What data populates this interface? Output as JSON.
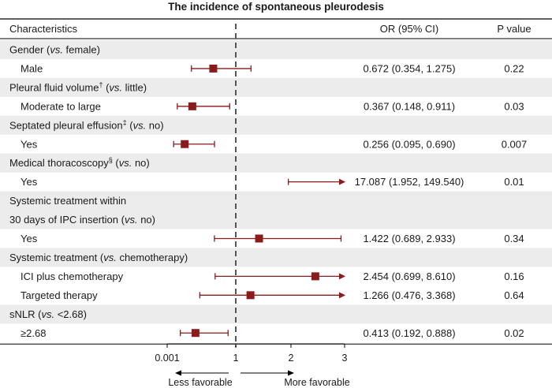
{
  "colors": {
    "marker": "#8b1a1a",
    "shade": "#ececec",
    "rule": "#000000",
    "refline": "#555555"
  },
  "chart_data": {
    "type": "forest",
    "title": "The incidence of spontaneous pleurodesis",
    "columns": {
      "characteristics": "Characteristics",
      "or": "OR (95% CI)",
      "p": "P value"
    },
    "x_axis": {
      "ticks": [
        {
          "value": 0.001,
          "label": "0.001"
        },
        {
          "value": 1,
          "label": "1"
        },
        {
          "value": 2,
          "label": "2"
        },
        {
          "value": 3,
          "label": "3"
        }
      ],
      "range": [
        0.001,
        3
      ],
      "reference": 1,
      "left_label": "Less favorable",
      "right_label": "More favorable"
    },
    "rows": [
      {
        "kind": "header",
        "parts": [
          {
            "t": "Gender ("
          },
          {
            "t": "vs.",
            "i": true
          },
          {
            "t": " female)"
          }
        ]
      },
      {
        "kind": "item",
        "label": "Male",
        "or": 0.672,
        "lo": 0.354,
        "hi": 1.275,
        "or_text": "0.672 (0.354, 1.275)",
        "p": "0.22"
      },
      {
        "kind": "header",
        "parts": [
          {
            "t": "Pleural fluid volume"
          },
          {
            "t": "†",
            "sup": true
          },
          {
            "t": " ("
          },
          {
            "t": "vs.",
            "i": true
          },
          {
            "t": " little)"
          }
        ]
      },
      {
        "kind": "item",
        "label": "Moderate to large",
        "or": 0.367,
        "lo": 0.148,
        "hi": 0.911,
        "or_text": "0.367 (0.148, 0.911)",
        "p": "0.03"
      },
      {
        "kind": "header",
        "parts": [
          {
            "t": "Septated pleural effusion"
          },
          {
            "t": "‡",
            "sup": true
          },
          {
            "t": " ("
          },
          {
            "t": "vs.",
            "i": true
          },
          {
            "t": " no)"
          }
        ]
      },
      {
        "kind": "item",
        "label": "Yes",
        "or": 0.256,
        "lo": 0.095,
        "hi": 0.69,
        "or_text": "0.256 (0.095, 0.690)",
        "p": "0.007"
      },
      {
        "kind": "header",
        "parts": [
          {
            "t": "Medical thoracoscopy"
          },
          {
            "t": "§",
            "sup": true
          },
          {
            "t": " ("
          },
          {
            "t": "vs.",
            "i": true
          },
          {
            "t": " no)"
          }
        ]
      },
      {
        "kind": "item",
        "label": "Yes",
        "or": 17.087,
        "lo": 1.952,
        "hi": 149.54,
        "or_text": "17.087 (1.952, 149.540)",
        "p": "0.01",
        "arrow": true,
        "show_point": false
      },
      {
        "kind": "header",
        "parts": [
          {
            "t": "Systemic treatment within"
          }
        ]
      },
      {
        "kind": "header",
        "parts": [
          {
            "t": "30 days of IPC insertion ("
          },
          {
            "t": "vs.",
            "i": true
          },
          {
            "t": " no)"
          }
        ]
      },
      {
        "kind": "item",
        "label": "Yes",
        "or": 1.422,
        "lo": 0.689,
        "hi": 2.933,
        "or_text": "1.422 (0.689, 2.933)",
        "p": "0.34"
      },
      {
        "kind": "header",
        "parts": [
          {
            "t": "Systemic treatment ("
          },
          {
            "t": "vs.",
            "i": true
          },
          {
            "t": " chemotherapy)"
          }
        ]
      },
      {
        "kind": "item",
        "label": "ICI plus chemotherapy",
        "or": 2.454,
        "lo": 0.699,
        "hi": 8.61,
        "or_text": "2.454 (0.699, 8.610)",
        "p": "0.16",
        "arrow": true
      },
      {
        "kind": "item",
        "label": "Targeted therapy",
        "or": 1.266,
        "lo": 0.476,
        "hi": 3.368,
        "or_text": "1.266 (0.476, 3.368)",
        "p": "0.64",
        "arrow": true
      },
      {
        "kind": "header",
        "parts": [
          {
            "t": "sNLR ("
          },
          {
            "t": "vs.",
            "i": true
          },
          {
            "t": " <2.68)"
          }
        ]
      },
      {
        "kind": "item",
        "label": "≥2.68",
        "or": 0.413,
        "lo": 0.192,
        "hi": 0.888,
        "or_text": "0.413 (0.192, 0.888)",
        "p": "0.02"
      }
    ]
  }
}
